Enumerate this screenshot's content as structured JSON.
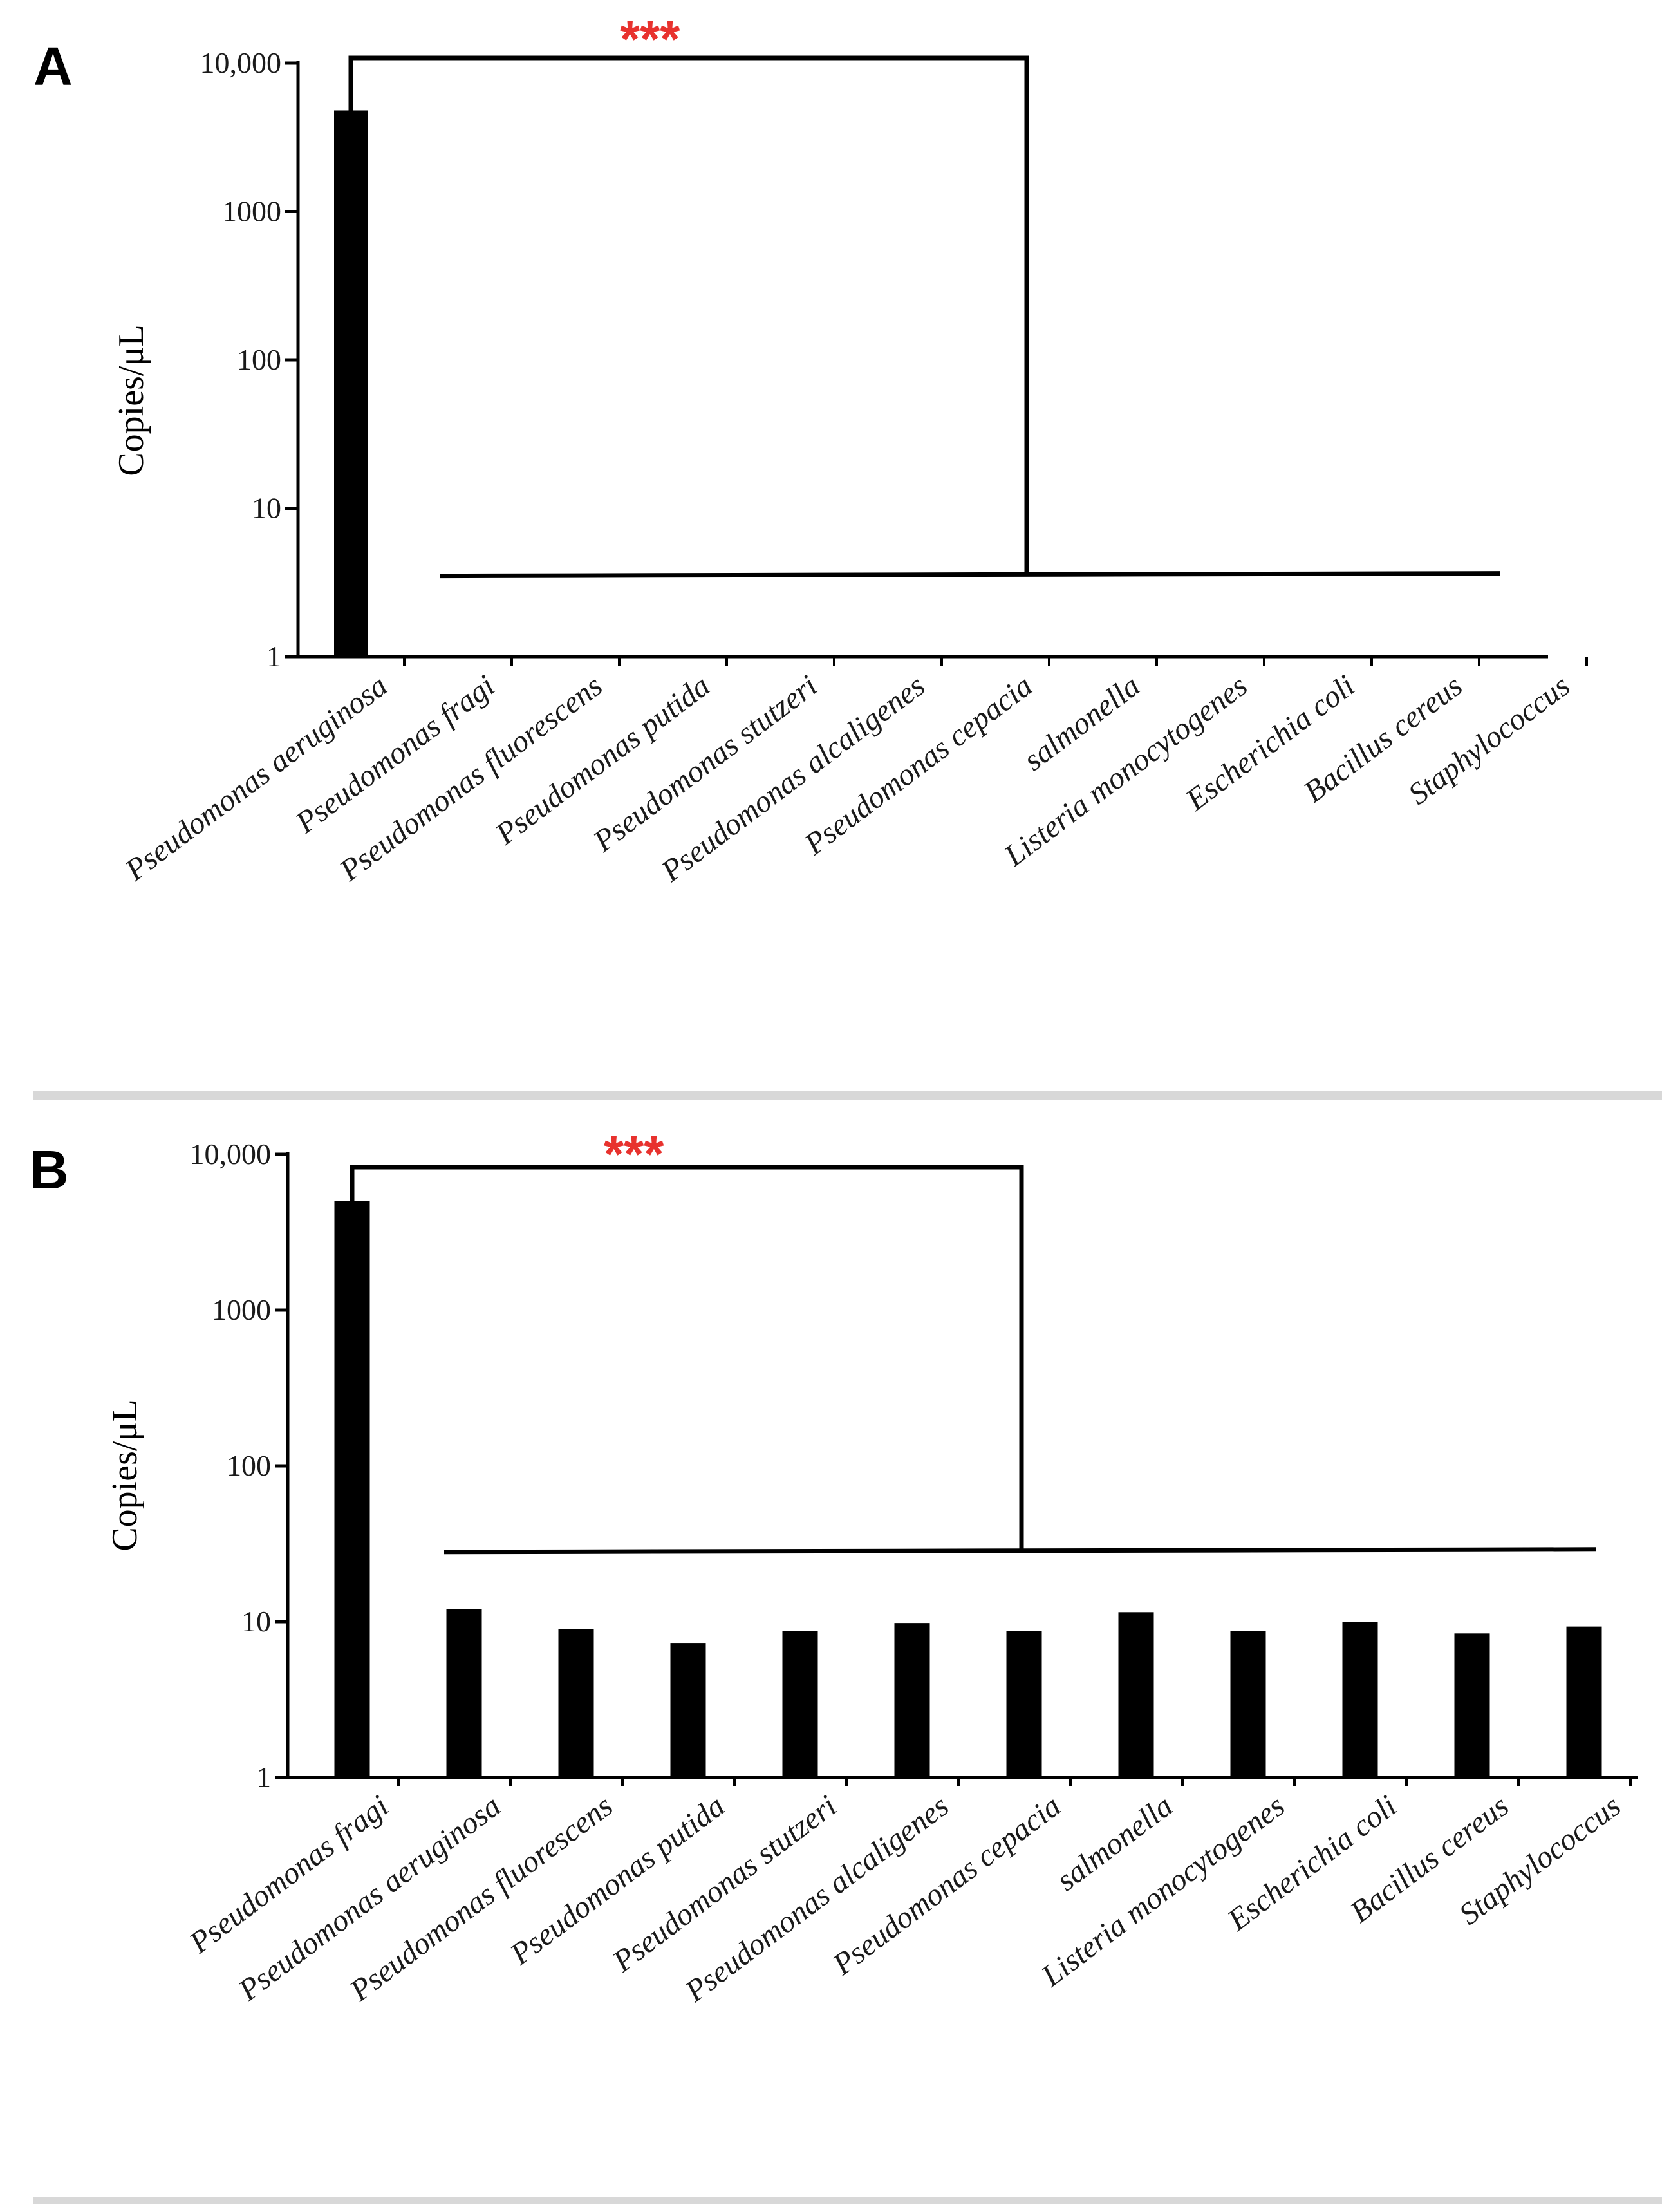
{
  "chart_data": [
    {
      "panel": "A",
      "type": "bar",
      "scale": "log",
      "ylabel": "Copies/μL",
      "yticks": [
        "1",
        "10",
        "100",
        "1000",
        "10,000"
      ],
      "ylim": [
        1,
        10000
      ],
      "categories": [
        "Pseudomonas aeruginosa",
        "Pseudomonas fragi",
        "Pseudomonas fluorescens",
        "Pseudomonas putida",
        "Pseudomonas stutzeri",
        "Pseudomonas alcaligenes",
        "Pseudomonas cepacia",
        "salmonella",
        "Listeria monocytogenes",
        "Escherichia coli",
        "Bacillus cereus",
        "Staphylococcus"
      ],
      "values": [
        4800,
        null,
        null,
        null,
        null,
        null,
        null,
        null,
        null,
        null,
        null,
        null
      ],
      "significance": "***",
      "bracket_level": 11000,
      "group_line_level": 3.5
    },
    {
      "panel": "B",
      "type": "bar",
      "scale": "log",
      "ylabel": "Copies/μL",
      "yticks": [
        "1",
        "10",
        "100",
        "1000",
        "10,000"
      ],
      "ylim": [
        1,
        10000
      ],
      "categories": [
        "Pseudomonas fragi",
        "Pseudomonas aeruginosa",
        "Pseudomonas fluorescens",
        "Pseudomonas putida",
        "Pseudomonas stutzeri",
        "Pseudomonas alcaligenes",
        "Pseudomonas cepacia",
        "salmonella",
        "Listeria monocytogenes",
        "Escherichia coli",
        "Bacillus cereus",
        "Staphylococcus"
      ],
      "values": [
        5000,
        12,
        9,
        7.3,
        8.7,
        9.8,
        8.7,
        11.5,
        8.7,
        10,
        8.4,
        9.3
      ],
      "significance": "***",
      "bracket_level": 8000,
      "group_line_level": 28
    }
  ]
}
